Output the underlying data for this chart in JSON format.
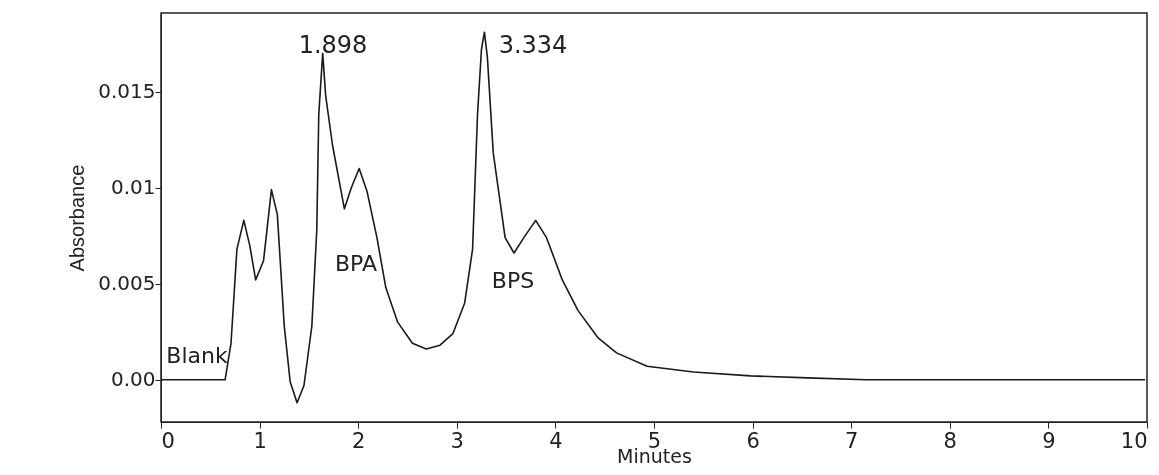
{
  "chart_data": {
    "type": "line",
    "xlabel": "Minutes",
    "ylabel": "Absorbance",
    "xlim": [
      0,
      10
    ],
    "ylim": [
      -0.0022,
      0.0191
    ],
    "xticks": [
      0,
      1,
      2,
      3,
      4,
      5,
      6,
      7,
      8,
      9,
      10
    ],
    "yticks": [
      {
        "value": 0,
        "label": "0.00"
      },
      0.005,
      0.01,
      0.015
    ],
    "grid": false,
    "marker": "none",
    "line_style": "solid",
    "annotations": [
      "1.898",
      "3.334",
      "Blank",
      "BPA",
      "BPS"
    ],
    "series": [
      {
        "color": "#1a1a1a",
        "x": [
          0,
          0.65,
          0.71,
          0.77,
          0.84,
          0.9,
          0.96,
          1.04,
          1.12,
          1.18,
          1.25,
          1.31,
          1.38,
          1.45,
          1.53,
          1.58,
          1.6,
          1.64,
          1.67,
          1.74,
          1.86,
          1.93,
          2.01,
          2.09,
          2.19,
          2.28,
          2.4,
          2.55,
          2.69,
          2.83,
          2.96,
          3.08,
          3.16,
          3.21,
          3.25,
          3.28,
          3.31,
          3.37,
          3.49,
          3.58,
          3.68,
          3.8,
          3.91,
          4.07,
          4.23,
          4.43,
          4.62,
          4.93,
          5.4,
          5.98,
          6.56,
          7.15,
          8.31,
          9.98
        ],
        "values": [
          0,
          0,
          0.0019,
          0.0068,
          0.0083,
          0.007,
          0.0052,
          0.0062,
          0.0099,
          0.0086,
          0.0028,
          -0.0001,
          -0.0012,
          -0.0003,
          0.0028,
          0.0078,
          0.0138,
          0.017,
          0.0148,
          0.0122,
          0.0089,
          0.01,
          0.011,
          0.0098,
          0.0074,
          0.0048,
          0.003,
          0.0019,
          0.0016,
          0.0018,
          0.0024,
          0.004,
          0.0068,
          0.0138,
          0.0172,
          0.0181,
          0.0168,
          0.0118,
          0.0074,
          0.0066,
          0.0074,
          0.0083,
          0.0074,
          0.0052,
          0.0036,
          0.0022,
          0.0014,
          0.0007,
          0.0004,
          0.0002,
          0.0001,
          0,
          0,
          0
        ]
      }
    ]
  }
}
